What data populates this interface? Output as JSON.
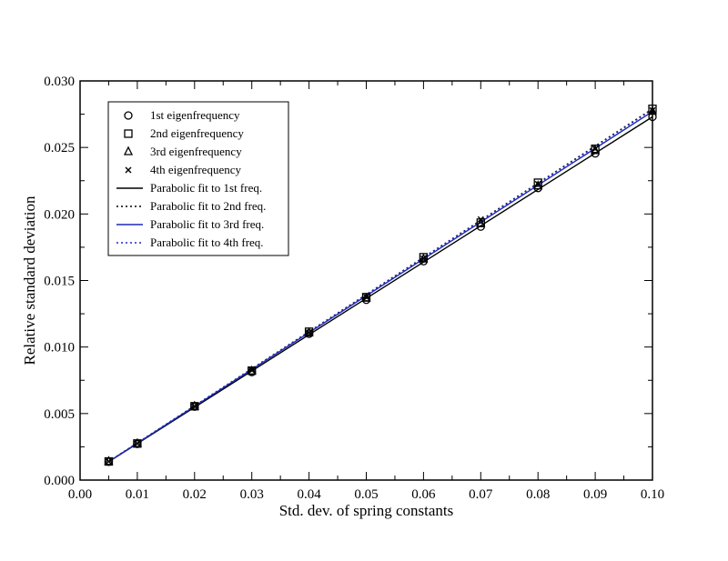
{
  "chart_data": {
    "type": "scatter",
    "xlabel": "Std. dev. of spring constants",
    "ylabel": "Relative standard deviation",
    "xlim": [
      0.0,
      0.1
    ],
    "ylim": [
      0.0,
      0.03
    ],
    "x_ticks": [
      "0.00",
      "0.01",
      "0.02",
      "0.03",
      "0.04",
      "0.05",
      "0.06",
      "0.07",
      "0.08",
      "0.09",
      "0.10"
    ],
    "y_ticks": [
      "0.000",
      "0.005",
      "0.010",
      "0.015",
      "0.020",
      "0.025",
      "0.030"
    ],
    "grid": false,
    "legend_position": "top-left",
    "x": [
      0.005,
      0.01,
      0.02,
      0.03,
      0.04,
      0.05,
      0.06,
      0.07,
      0.08,
      0.09,
      0.1
    ],
    "series": [
      {
        "name": "1st eigenfrequency",
        "marker": "circle",
        "color": "#000000",
        "values": [
          0.00138,
          0.00272,
          0.00552,
          0.00812,
          0.011,
          0.01355,
          0.01645,
          0.01905,
          0.02195,
          0.02455,
          0.0273
        ]
      },
      {
        "name": "2nd eigenfrequency",
        "marker": "square",
        "color": "#000000",
        "values": [
          0.0014,
          0.00275,
          0.00555,
          0.00822,
          0.01115,
          0.01375,
          0.01675,
          0.01935,
          0.02235,
          0.0249,
          0.0279
        ]
      },
      {
        "name": "3rd eigenfrequency",
        "marker": "triangle",
        "color": "#000000",
        "values": [
          0.00139,
          0.00273,
          0.00553,
          0.00818,
          0.01105,
          0.01365,
          0.0166,
          0.01925,
          0.0221,
          0.02475,
          0.0277
        ]
      },
      {
        "name": "4th eigenfrequency",
        "marker": "x",
        "color": "#000000",
        "values": [
          0.0014,
          0.00274,
          0.00555,
          0.00825,
          0.0111,
          0.01375,
          0.01665,
          0.0196,
          0.02225,
          0.0249,
          0.0278
        ]
      }
    ],
    "fits": [
      {
        "name": "Parabolic fit to 1st freq.",
        "style": "solid",
        "color": "#000000",
        "x": [
          0.005,
          0.1
        ],
        "y": [
          0.00138,
          0.0273
        ]
      },
      {
        "name": "Parabolic fit to 2nd freq.",
        "style": "dotted",
        "color": "#000000",
        "x": [
          0.005,
          0.1
        ],
        "y": [
          0.0014,
          0.0279
        ]
      },
      {
        "name": "Parabolic fit to 3rd freq.",
        "style": "solid",
        "color": "#1f2ab8",
        "x": [
          0.005,
          0.1
        ],
        "y": [
          0.00139,
          0.0277
        ]
      },
      {
        "name": "Parabolic fit to 4th freq.",
        "style": "dotted",
        "color": "#1f2ab8",
        "x": [
          0.005,
          0.1
        ],
        "y": [
          0.0014,
          0.02785
        ]
      }
    ]
  }
}
